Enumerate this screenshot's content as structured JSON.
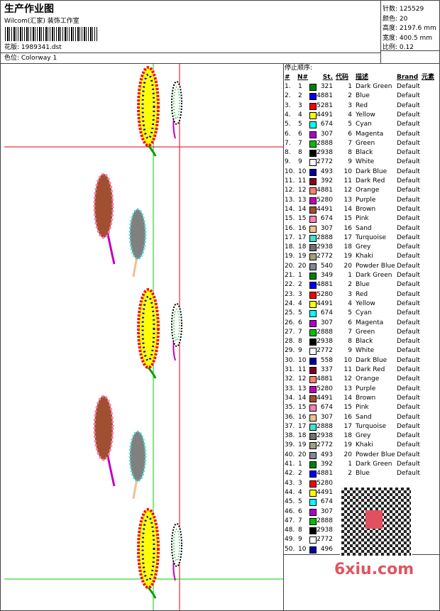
{
  "header": {
    "title": "生产作业图",
    "studio": "Wilcom(汇家) 装饰工作室",
    "design": "花版: 1989341.dst",
    "colorway": "色位: Colorway 1",
    "stats": [
      "针数: 125529",
      "颜色: 20",
      "高度: 2197.6 mm",
      "宽度: 400.5 mm",
      "比例: 0.12"
    ]
  },
  "table": {
    "title": "停止顺序:",
    "columns": [
      "#",
      "N#",
      "St.",
      "代码",
      "描述",
      "Brand",
      "元素"
    ],
    "rows": [
      {
        "index": "1.",
        "n": "1",
        "color": "#008000",
        "stitches": "321",
        "code": "1",
        "description": "Dark Green",
        "brand": "Default"
      },
      {
        "index": "2.",
        "n": "2",
        "color": "#0000ff",
        "stitches": "4881",
        "code": "2",
        "description": "Blue",
        "brand": "Default"
      },
      {
        "index": "3.",
        "n": "3",
        "color": "#ff0000",
        "stitches": "5281",
        "code": "3",
        "description": "Red",
        "brand": "Default"
      },
      {
        "index": "4.",
        "n": "4",
        "color": "#ffff00",
        "stitches": "4491",
        "code": "4",
        "description": "Yellow",
        "brand": "Default"
      },
      {
        "index": "5.",
        "n": "5",
        "color": "#00ffff",
        "stitches": "674",
        "code": "5",
        "description": "Cyan",
        "brand": "Default"
      },
      {
        "index": "6.",
        "n": "6",
        "color": "#b000d0",
        "stitches": "307",
        "code": "6",
        "description": "Magenta",
        "brand": "Default"
      },
      {
        "index": "7.",
        "n": "7",
        "color": "#00c000",
        "stitches": "2888",
        "code": "7",
        "description": "Green",
        "brand": "Default"
      },
      {
        "index": "8.",
        "n": "8",
        "color": "#000000",
        "stitches": "2938",
        "code": "8",
        "description": "Black",
        "brand": "Default"
      },
      {
        "index": "9.",
        "n": "9",
        "color": "#ffffff",
        "stitches": "2772",
        "code": "9",
        "description": "White",
        "brand": "Default"
      },
      {
        "index": "10.",
        "n": "10",
        "color": "#0000a0",
        "stitches": "493",
        "code": "10",
        "description": "Dark Blue",
        "brand": "Default"
      },
      {
        "index": "11.",
        "n": "11",
        "color": "#800020",
        "stitches": "392",
        "code": "11",
        "description": "Dark Red",
        "brand": "Default"
      },
      {
        "index": "12.",
        "n": "12",
        "color": "#ff8070",
        "stitches": "4881",
        "code": "12",
        "description": "Orange",
        "brand": "Default"
      },
      {
        "index": "13.",
        "n": "13",
        "color": "#c000c0",
        "stitches": "5280",
        "code": "13",
        "description": "Purple",
        "brand": "Default"
      },
      {
        "index": "14.",
        "n": "14",
        "color": "#a05030",
        "stitches": "4491",
        "code": "14",
        "description": "Brown",
        "brand": "Default"
      },
      {
        "index": "15.",
        "n": "15",
        "color": "#ff80b0",
        "stitches": "674",
        "code": "15",
        "description": "Pink",
        "brand": "Default"
      },
      {
        "index": "16.",
        "n": "16",
        "color": "#f0c090",
        "stitches": "307",
        "code": "16",
        "description": "Sand",
        "brand": "Default"
      },
      {
        "index": "17.",
        "n": "17",
        "color": "#40e0d0",
        "stitches": "2888",
        "code": "17",
        "description": "Turquoise",
        "brand": "Default"
      },
      {
        "index": "18.",
        "n": "18",
        "color": "#707070",
        "stitches": "2938",
        "code": "18",
        "description": "Grey",
        "brand": "Default"
      },
      {
        "index": "19.",
        "n": "19",
        "color": "#a0a080",
        "stitches": "2772",
        "code": "19",
        "description": "Khaki",
        "brand": "Default"
      },
      {
        "index": "20.",
        "n": "20",
        "color": "#808890",
        "stitches": "540",
        "code": "20",
        "description": "Powder Blue",
        "brand": "Default"
      },
      {
        "index": "21.",
        "n": "1",
        "color": "#008000",
        "stitches": "349",
        "code": "1",
        "description": "Dark Green",
        "brand": "Default"
      },
      {
        "index": "22.",
        "n": "2",
        "color": "#0000ff",
        "stitches": "4881",
        "code": "2",
        "description": "Blue",
        "brand": "Default"
      },
      {
        "index": "23.",
        "n": "3",
        "color": "#ff0000",
        "stitches": "5280",
        "code": "3",
        "description": "Red",
        "brand": "Default"
      },
      {
        "index": "24.",
        "n": "4",
        "color": "#ffff00",
        "stitches": "4491",
        "code": "4",
        "description": "Yellow",
        "brand": "Default"
      },
      {
        "index": "25.",
        "n": "5",
        "color": "#00ffff",
        "stitches": "674",
        "code": "5",
        "description": "Cyan",
        "brand": "Default"
      },
      {
        "index": "26.",
        "n": "6",
        "color": "#b000d0",
        "stitches": "307",
        "code": "6",
        "description": "Magenta",
        "brand": "Default"
      },
      {
        "index": "27.",
        "n": "7",
        "color": "#00c000",
        "stitches": "2888",
        "code": "7",
        "description": "Green",
        "brand": "Default"
      },
      {
        "index": "28.",
        "n": "8",
        "color": "#000000",
        "stitches": "2938",
        "code": "8",
        "description": "Black",
        "brand": "Default"
      },
      {
        "index": "29.",
        "n": "9",
        "color": "#ffffff",
        "stitches": "2772",
        "code": "9",
        "description": "White",
        "brand": "Default"
      },
      {
        "index": "30.",
        "n": "10",
        "color": "#0000a0",
        "stitches": "558",
        "code": "10",
        "description": "Dark Blue",
        "brand": "Default"
      },
      {
        "index": "31.",
        "n": "11",
        "color": "#800020",
        "stitches": "337",
        "code": "11",
        "description": "Dark Red",
        "brand": "Default"
      },
      {
        "index": "32.",
        "n": "12",
        "color": "#ff8070",
        "stitches": "4881",
        "code": "12",
        "description": "Orange",
        "brand": "Default"
      },
      {
        "index": "33.",
        "n": "13",
        "color": "#c000c0",
        "stitches": "5280",
        "code": "13",
        "description": "Purple",
        "brand": "Default"
      },
      {
        "index": "34.",
        "n": "14",
        "color": "#a05030",
        "stitches": "4491",
        "code": "14",
        "description": "Brown",
        "brand": "Default"
      },
      {
        "index": "35.",
        "n": "15",
        "color": "#ff80b0",
        "stitches": "674",
        "code": "15",
        "description": "Pink",
        "brand": "Default"
      },
      {
        "index": "36.",
        "n": "16",
        "color": "#f0c090",
        "stitches": "307",
        "code": "16",
        "description": "Sand",
        "brand": "Default"
      },
      {
        "index": "37.",
        "n": "17",
        "color": "#40e0d0",
        "stitches": "2888",
        "code": "17",
        "description": "Turquoise",
        "brand": "Default"
      },
      {
        "index": "38.",
        "n": "18",
        "color": "#707070",
        "stitches": "2938",
        "code": "18",
        "description": "Grey",
        "brand": "Default"
      },
      {
        "index": "39.",
        "n": "19",
        "color": "#a0a080",
        "stitches": "2772",
        "code": "19",
        "description": "Khaki",
        "brand": "Default"
      },
      {
        "index": "40.",
        "n": "20",
        "color": "#808890",
        "stitches": "493",
        "code": "20",
        "description": "Powder Blue",
        "brand": "Default"
      },
      {
        "index": "41.",
        "n": "1",
        "color": "#008000",
        "stitches": "392",
        "code": "1",
        "description": "Dark Green",
        "brand": "Default"
      },
      {
        "index": "42.",
        "n": "2",
        "color": "#0000ff",
        "stitches": "4881",
        "code": "2",
        "description": "Blue",
        "brand": "Default"
      },
      {
        "index": "43.",
        "n": "3",
        "color": "#ff0000",
        "stitches": "5280"
      },
      {
        "index": "44.",
        "n": "4",
        "color": "#ffff00",
        "stitches": "4491"
      },
      {
        "index": "45.",
        "n": "5",
        "color": "#00ffff",
        "stitches": "674"
      },
      {
        "index": "46.",
        "n": "6",
        "color": "#b000d0",
        "stitches": "307"
      },
      {
        "index": "47.",
        "n": "7",
        "color": "#00c000",
        "stitches": "2888"
      },
      {
        "index": "48.",
        "n": "8",
        "color": "#000000",
        "stitches": "2938"
      },
      {
        "index": "49.",
        "n": "9",
        "color": "#ffffff",
        "stitches": "2772"
      },
      {
        "index": "50.",
        "n": "10",
        "color": "#0000a0",
        "stitches": "496"
      }
    ]
  },
  "watermark": "6xiu.com"
}
